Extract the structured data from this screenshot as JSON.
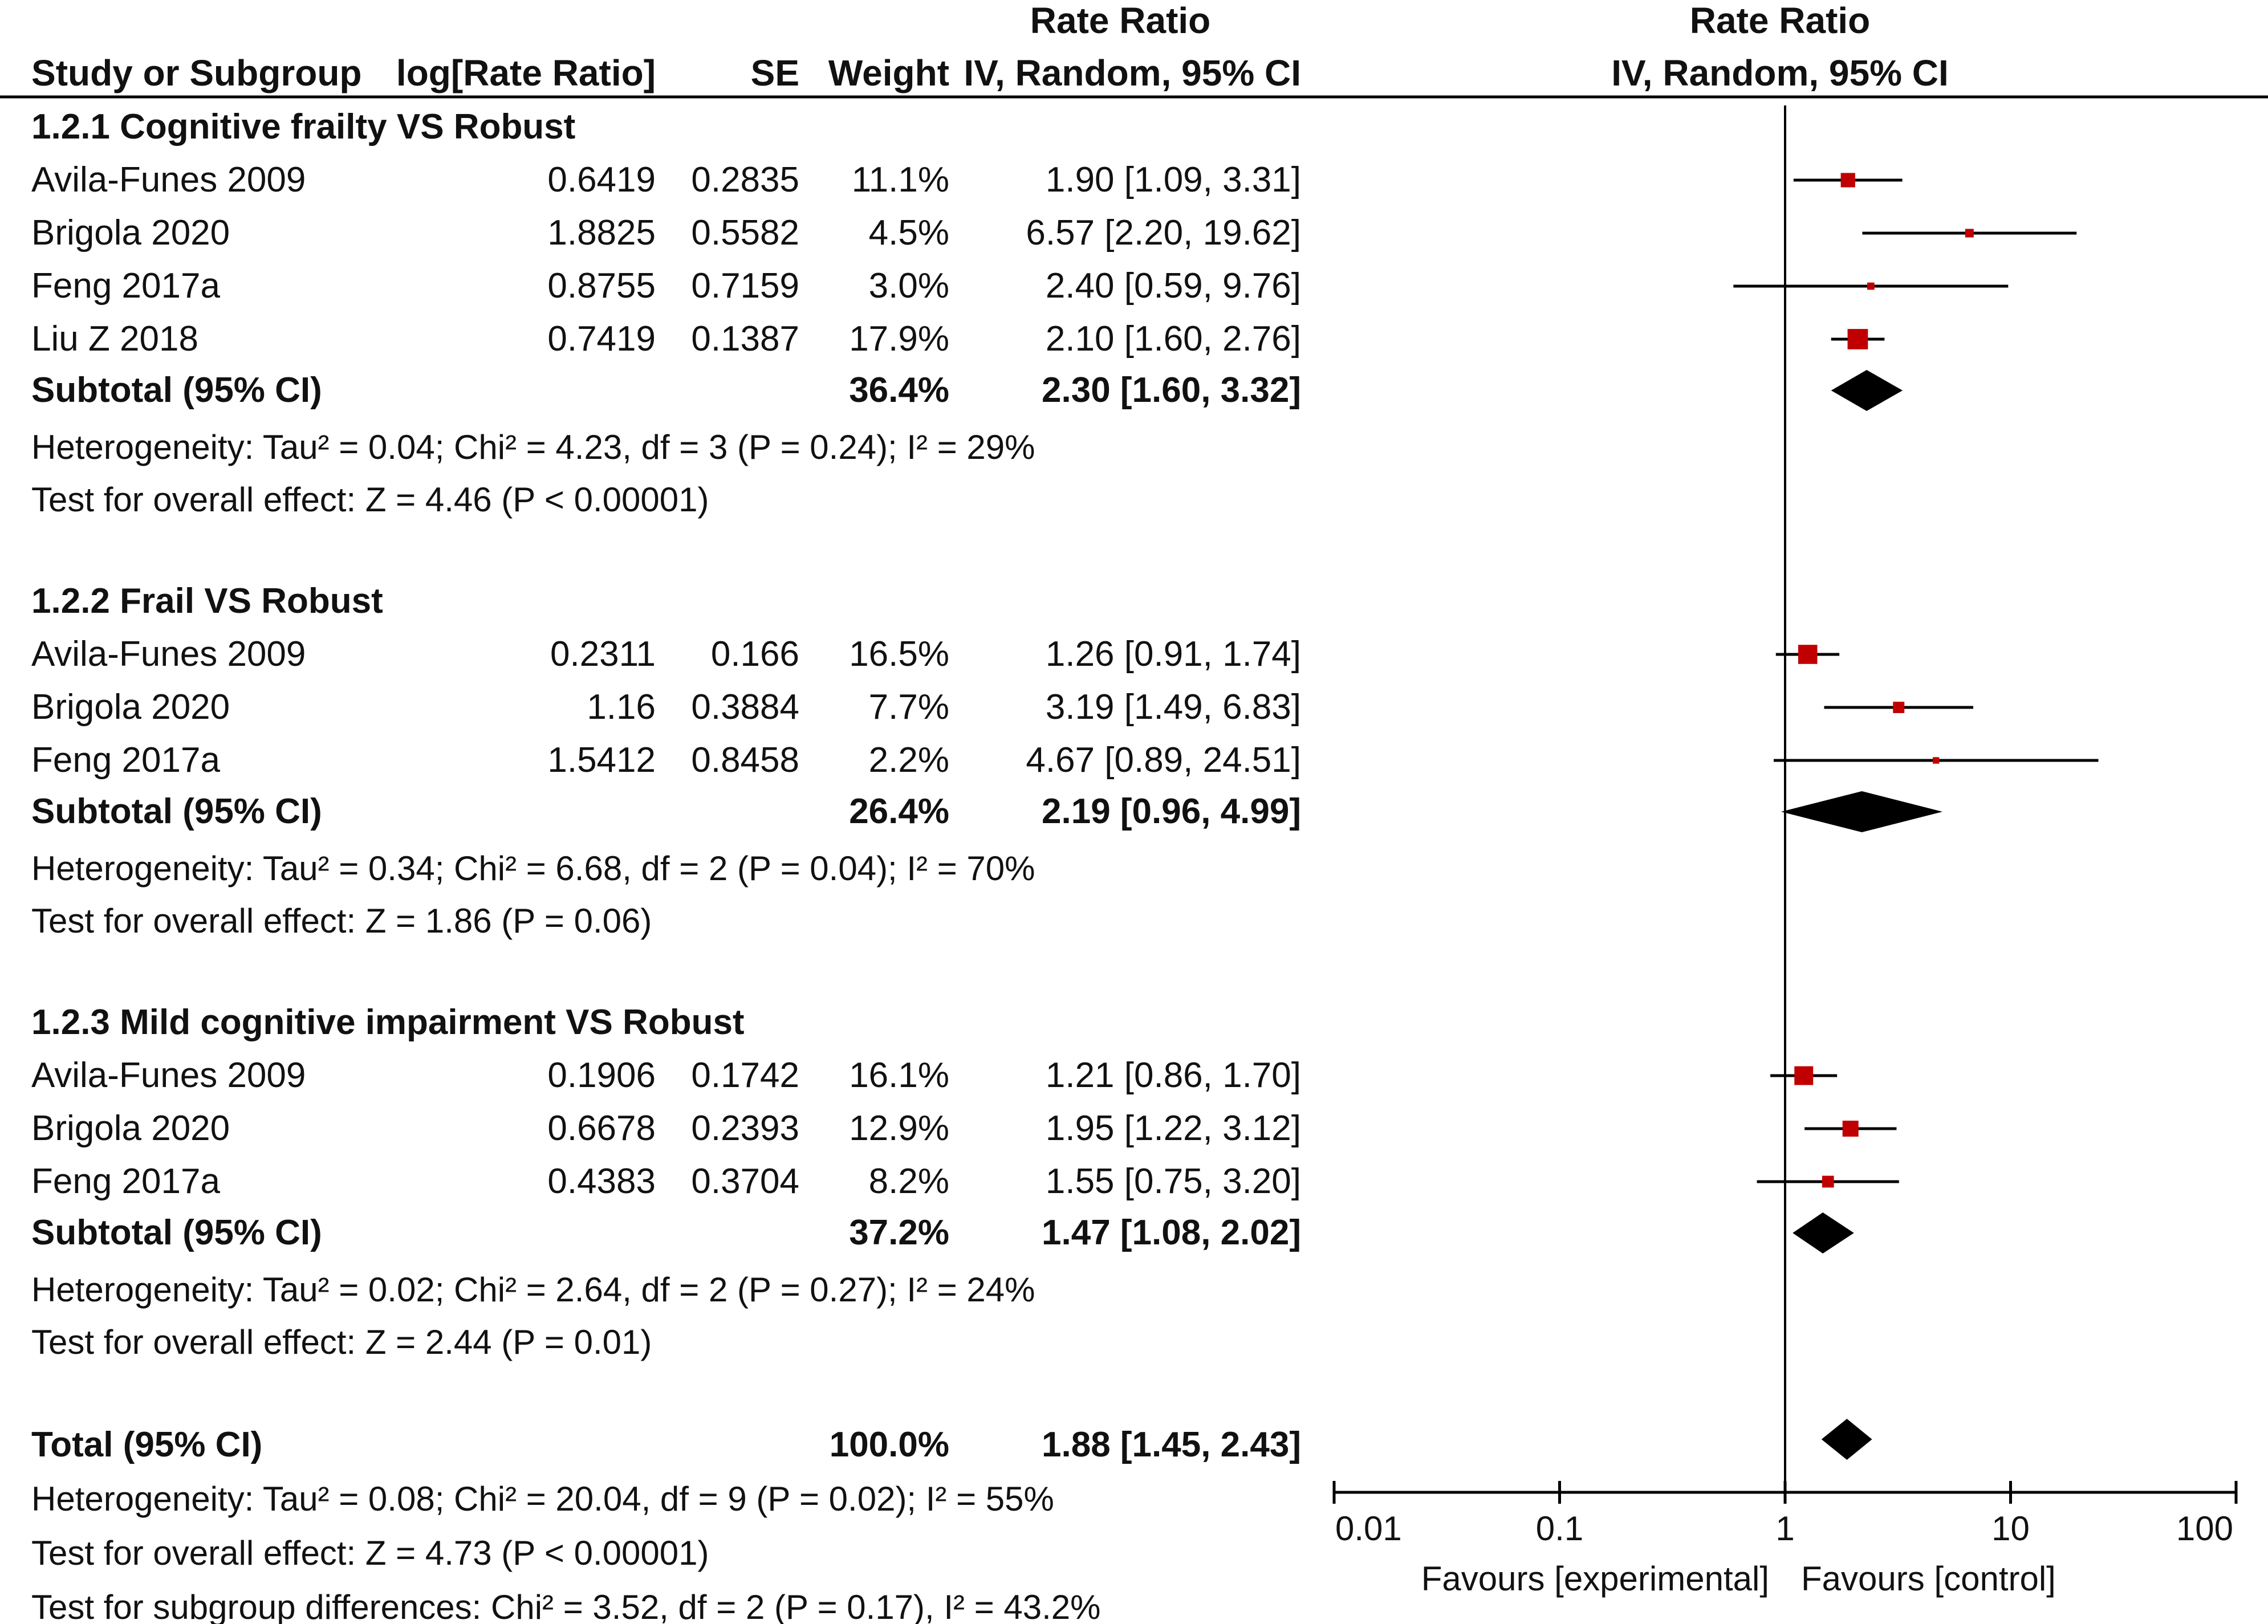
{
  "chart_data": {
    "type": "forest",
    "scale": "log",
    "xlim": [
      0.01,
      100
    ],
    "ticks": [
      "0.01",
      "0.1",
      "1",
      "10",
      "100"
    ],
    "tick_values": [
      0.01,
      0.1,
      1,
      10,
      100
    ],
    "reference_line": 1,
    "favours_left": "Favours [experimental]",
    "favours_right": "Favours [control]",
    "headers": {
      "study": "Study or Subgroup",
      "log_rr": "log[Rate Ratio]",
      "se": "SE",
      "weight": "Weight",
      "effect_top": "Rate Ratio",
      "effect_sub": "IV, Random, 95% CI",
      "plot_top": "Rate Ratio",
      "plot_sub": "IV, Random, 95% CI"
    },
    "subgroups": [
      {
        "title": "1.2.1 Cognitive frailty VS Robust",
        "studies": [
          {
            "name": "Avila-Funes 2009",
            "log_rr": "0.6419",
            "se": "0.2835",
            "weight": "11.1%",
            "effect": "1.90 [1.09, 3.31]",
            "est": 1.9,
            "lo": 1.09,
            "hi": 3.31,
            "w": 11.1
          },
          {
            "name": "Brigola 2020",
            "log_rr": "1.8825",
            "se": "0.5582",
            "weight": "4.5%",
            "effect": "6.57 [2.20, 19.62]",
            "est": 6.57,
            "lo": 2.2,
            "hi": 19.62,
            "w": 4.5
          },
          {
            "name": "Feng 2017a",
            "log_rr": "0.8755",
            "se": "0.7159",
            "weight": "3.0%",
            "effect": "2.40 [0.59, 9.76]",
            "est": 2.4,
            "lo": 0.59,
            "hi": 9.76,
            "w": 3.0
          },
          {
            "name": "Liu Z 2018",
            "log_rr": "0.7419",
            "se": "0.1387",
            "weight": "17.9%",
            "effect": "2.10 [1.60, 2.76]",
            "est": 2.1,
            "lo": 1.6,
            "hi": 2.76,
            "w": 17.9
          }
        ],
        "subtotal": {
          "label": "Subtotal (95% CI)",
          "weight": "36.4%",
          "effect": "2.30 [1.60, 3.32]",
          "est": 2.3,
          "lo": 1.6,
          "hi": 3.32
        },
        "heterogeneity": "Heterogeneity: Tau² = 0.04; Chi² = 4.23, df = 3 (P = 0.24); I² = 29%",
        "overall_test": "Test for overall effect: Z = 4.46 (P < 0.00001)"
      },
      {
        "title": "1.2.2 Frail VS Robust",
        "studies": [
          {
            "name": "Avila-Funes 2009",
            "log_rr": "0.2311",
            "se": "0.166",
            "weight": "16.5%",
            "effect": "1.26 [0.91, 1.74]",
            "est": 1.26,
            "lo": 0.91,
            "hi": 1.74,
            "w": 16.5
          },
          {
            "name": "Brigola 2020",
            "log_rr": "1.16",
            "se": "0.3884",
            "weight": "7.7%",
            "effect": "3.19 [1.49, 6.83]",
            "est": 3.19,
            "lo": 1.49,
            "hi": 6.83,
            "w": 7.7
          },
          {
            "name": "Feng 2017a",
            "log_rr": "1.5412",
            "se": "0.8458",
            "weight": "2.2%",
            "effect": "4.67 [0.89, 24.51]",
            "est": 4.67,
            "lo": 0.89,
            "hi": 24.51,
            "w": 2.2
          }
        ],
        "subtotal": {
          "label": "Subtotal (95% CI)",
          "weight": "26.4%",
          "effect": "2.19 [0.96, 4.99]",
          "est": 2.19,
          "lo": 0.96,
          "hi": 4.99
        },
        "heterogeneity": "Heterogeneity: Tau² = 0.34; Chi² = 6.68, df = 2 (P = 0.04); I² = 70%",
        "overall_test": "Test for overall effect: Z = 1.86 (P = 0.06)"
      },
      {
        "title": "1.2.3 Mild cognitive impairment VS Robust",
        "studies": [
          {
            "name": "Avila-Funes 2009",
            "log_rr": "0.1906",
            "se": "0.1742",
            "weight": "16.1%",
            "effect": "1.21 [0.86, 1.70]",
            "est": 1.21,
            "lo": 0.86,
            "hi": 1.7,
            "w": 16.1
          },
          {
            "name": "Brigola 2020",
            "log_rr": "0.6678",
            "se": "0.2393",
            "weight": "12.9%",
            "effect": "1.95 [1.22, 3.12]",
            "est": 1.95,
            "lo": 1.22,
            "hi": 3.12,
            "w": 12.9
          },
          {
            "name": "Feng 2017a",
            "log_rr": "0.4383",
            "se": "0.3704",
            "weight": "8.2%",
            "effect": "1.55 [0.75, 3.20]",
            "est": 1.55,
            "lo": 0.75,
            "hi": 3.2,
            "w": 8.2
          }
        ],
        "subtotal": {
          "label": "Subtotal (95% CI)",
          "weight": "37.2%",
          "effect": "1.47 [1.08, 2.02]",
          "est": 1.47,
          "lo": 1.08,
          "hi": 2.02
        },
        "heterogeneity": "Heterogeneity: Tau² = 0.02; Chi² = 2.64, df = 2 (P = 0.27); I² = 24%",
        "overall_test": "Test for overall effect: Z = 2.44 (P = 0.01)"
      }
    ],
    "total": {
      "label": "Total (95% CI)",
      "weight": "100.0%",
      "effect": "1.88 [1.45, 2.43]",
      "est": 1.88,
      "lo": 1.45,
      "hi": 2.43,
      "heterogeneity": "Heterogeneity: Tau² = 0.08; Chi² = 20.04, df = 9 (P = 0.02); I² = 55%",
      "overall_test": "Test for overall effect: Z = 4.73 (P < 0.00001)",
      "subgroup_test": "Test for subgroup differences: Chi² = 3.52, df = 2 (P = 0.17), I² = 43.2%"
    },
    "colors": {
      "marker": "#c00000",
      "line": "#000000",
      "diamond": "#000000"
    }
  }
}
